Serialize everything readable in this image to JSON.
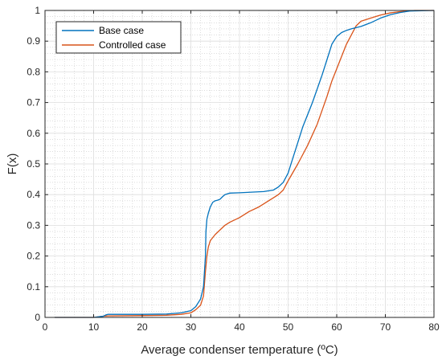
{
  "chart_data": {
    "type": "line",
    "xlabel": "Average condenser temperature (ºC)",
    "ylabel": "F(x)",
    "xlim": [
      0,
      80
    ],
    "ylim": [
      0,
      1
    ],
    "x_ticks": [
      0,
      10,
      20,
      30,
      40,
      50,
      60,
      70,
      80
    ],
    "y_ticks": [
      0,
      0.1,
      0.2,
      0.3,
      0.4,
      0.5,
      0.6,
      0.7,
      0.8,
      0.9,
      1
    ],
    "x_tick_labels": [
      "0",
      "10",
      "20",
      "30",
      "40",
      "50",
      "60",
      "70",
      "80"
    ],
    "y_tick_labels": [
      "0",
      "0.1",
      "0.2",
      "0.3",
      "0.4",
      "0.5",
      "0.6",
      "0.7",
      "0.8",
      "0.9",
      "1"
    ],
    "grid": true,
    "minor_grid": true,
    "legend_position": "top-left",
    "series": [
      {
        "name": "Base case",
        "color": "#0072BD",
        "x": [
          2,
          10,
          12,
          12.5,
          13,
          20,
          25,
          28,
          30,
          31,
          32,
          32.6,
          33,
          33.1,
          33.3,
          33.6,
          34,
          34.5,
          35,
          35.5,
          36,
          36.5,
          37,
          38,
          40,
          45,
          47,
          48,
          49,
          50,
          51,
          52,
          53,
          55,
          57,
          58,
          59,
          60,
          61,
          62,
          63,
          65,
          67,
          69,
          71,
          73,
          75,
          80
        ],
        "y": [
          0,
          0,
          0.004,
          0.008,
          0.01,
          0.01,
          0.011,
          0.015,
          0.022,
          0.035,
          0.06,
          0.1,
          0.2,
          0.28,
          0.32,
          0.34,
          0.36,
          0.375,
          0.38,
          0.382,
          0.385,
          0.393,
          0.4,
          0.405,
          0.406,
          0.41,
          0.415,
          0.425,
          0.44,
          0.47,
          0.52,
          0.57,
          0.62,
          0.7,
          0.79,
          0.84,
          0.89,
          0.915,
          0.928,
          0.935,
          0.94,
          0.948,
          0.96,
          0.975,
          0.986,
          0.993,
          0.998,
          1.0
        ]
      },
      {
        "name": "Controlled case",
        "color": "#D95319",
        "x": [
          2,
          10,
          11,
          12,
          13,
          20,
          25,
          28,
          30,
          31,
          32,
          32.6,
          33,
          33.3,
          33.6,
          34,
          35,
          36,
          37,
          38,
          40,
          42,
          44,
          46,
          47,
          48,
          49,
          50,
          52,
          54,
          56,
          58,
          59,
          60,
          61,
          62,
          63,
          64,
          65,
          67,
          69,
          71,
          73,
          76,
          80
        ],
        "y": [
          0,
          0,
          0.002,
          0.004,
          0.005,
          0.006,
          0.007,
          0.01,
          0.015,
          0.025,
          0.04,
          0.07,
          0.15,
          0.2,
          0.23,
          0.25,
          0.27,
          0.285,
          0.3,
          0.31,
          0.325,
          0.345,
          0.36,
          0.38,
          0.39,
          0.4,
          0.415,
          0.445,
          0.5,
          0.56,
          0.63,
          0.72,
          0.77,
          0.81,
          0.85,
          0.89,
          0.92,
          0.95,
          0.965,
          0.975,
          0.985,
          0.992,
          0.996,
          1.0,
          1.0
        ]
      }
    ]
  },
  "colors": {
    "axis": "#262626",
    "major_grid": "#dedede",
    "minor_grid": "#c8c8c8"
  }
}
